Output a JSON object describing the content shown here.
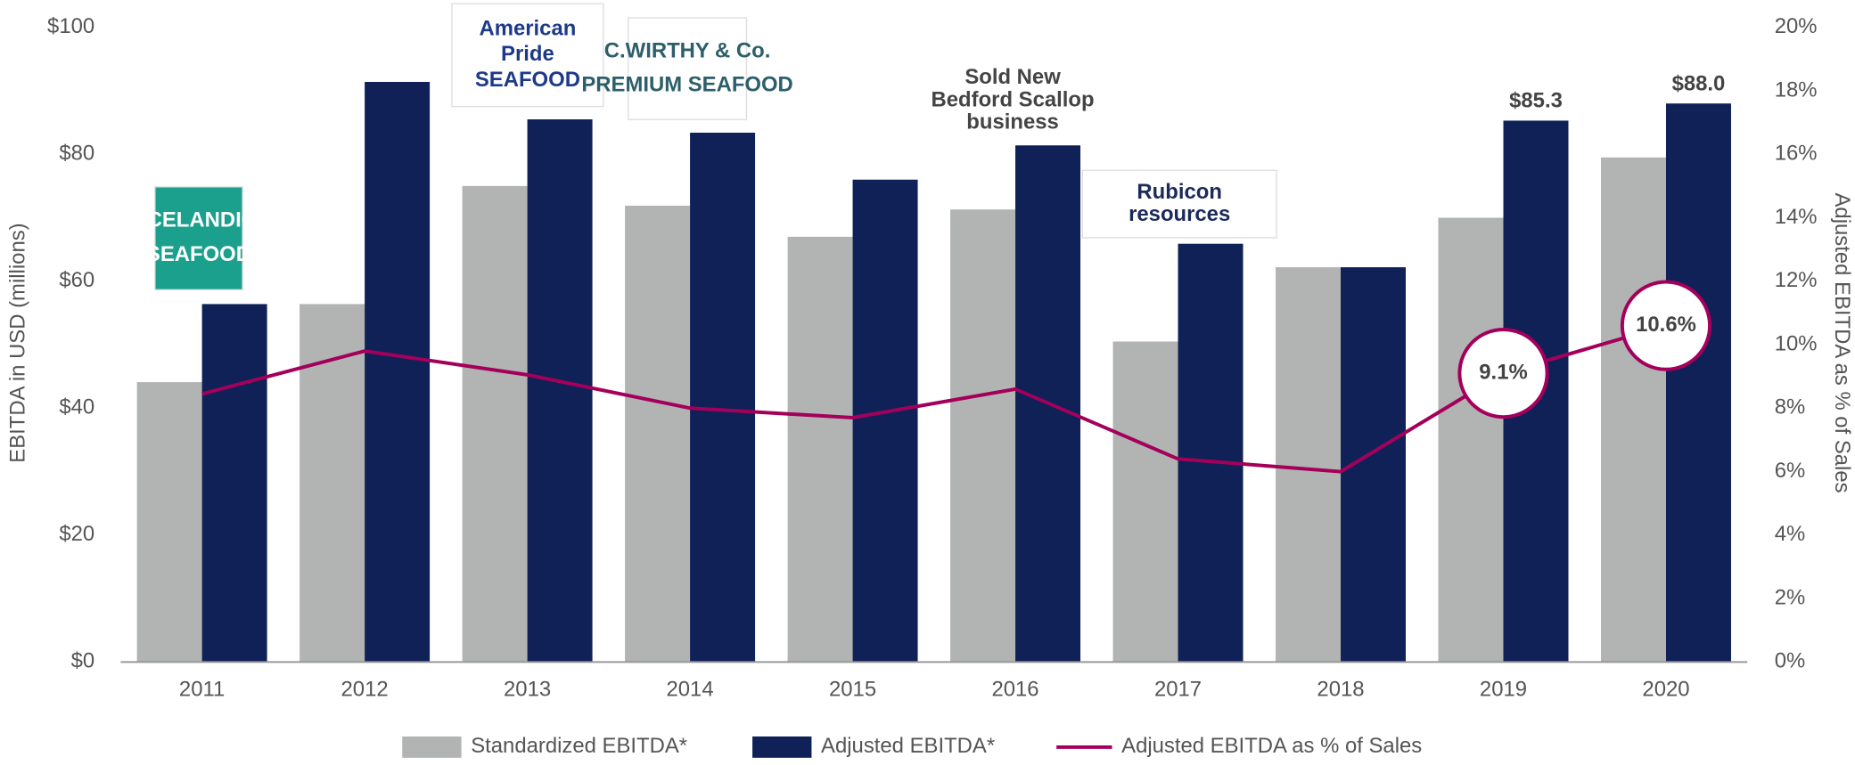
{
  "chart_data": {
    "type": "bar",
    "y_label": "EBITDA in USD (millions)",
    "y2_label": "Adjusted EBITDA as % of Sales",
    "categories": [
      "2011",
      "2012",
      "2013",
      "2014",
      "2015",
      "2016",
      "2017",
      "2018",
      "2019",
      "2020"
    ],
    "series": [
      {
        "name": "Standardized EBITDA*",
        "color": "#b2b4b3",
        "values": [
          44.1,
          56.4,
          75,
          71.9,
          67,
          71.3,
          50.5,
          62.2,
          70,
          79.5
        ]
      },
      {
        "name": "Adjusted EBITDA*",
        "color": "#0f2157",
        "values": [
          56.4,
          91.4,
          85.5,
          83.4,
          76,
          81.4,
          65.9,
          62.2,
          85.3,
          88.0
        ],
        "value_labels": [
          null,
          null,
          null,
          null,
          null,
          null,
          null,
          null,
          "$85.3",
          "$88.0"
        ]
      },
      {
        "name": "Adjusted EBITDA as % of Sales",
        "type": "line",
        "axis": "y2",
        "color": "#a4005b",
        "values": [
          8.45,
          9.8,
          9.05,
          8.0,
          7.7,
          8.6,
          6.4,
          6.0,
          9.1,
          10.6
        ],
        "value_labels": [
          null,
          null,
          null,
          null,
          null,
          null,
          null,
          null,
          "9.1%",
          "10.6%"
        ]
      }
    ],
    "ylim": [
      0,
      100
    ],
    "yticks": [
      {
        "value": 0,
        "label": "$0"
      },
      {
        "value": 20,
        "label": "$20"
      },
      {
        "value": 40,
        "label": "$40"
      },
      {
        "value": 60,
        "label": "$60"
      },
      {
        "value": 80,
        "label": "$80"
      },
      {
        "value": 100,
        "label": "$100"
      }
    ],
    "y2lim": [
      0,
      20
    ],
    "y2ticks": [
      {
        "value": 0,
        "label": "0%"
      },
      {
        "value": 2,
        "label": "2%"
      },
      {
        "value": 4,
        "label": "4%"
      },
      {
        "value": 6,
        "label": "6%"
      },
      {
        "value": 8,
        "label": "8%"
      },
      {
        "value": 10,
        "label": "10%"
      },
      {
        "value": 12,
        "label": "12%"
      },
      {
        "value": 14,
        "label": "14%"
      },
      {
        "value": 16,
        "label": "16%"
      },
      {
        "value": 18,
        "label": "18%"
      },
      {
        "value": 20,
        "label": "20%"
      }
    ],
    "annotation": [
      "Sold New",
      "Bedford Scallop",
      "business"
    ],
    "logos": [
      [
        "ICELANDIC",
        "SEAFOOD"
      ],
      [
        "American",
        "Pride",
        "SEAFOOD"
      ],
      [
        "C.WIRTHY & Co.",
        "PREMIUM SEAFOOD"
      ],
      [
        "Rubicon",
        "resources"
      ]
    ]
  }
}
